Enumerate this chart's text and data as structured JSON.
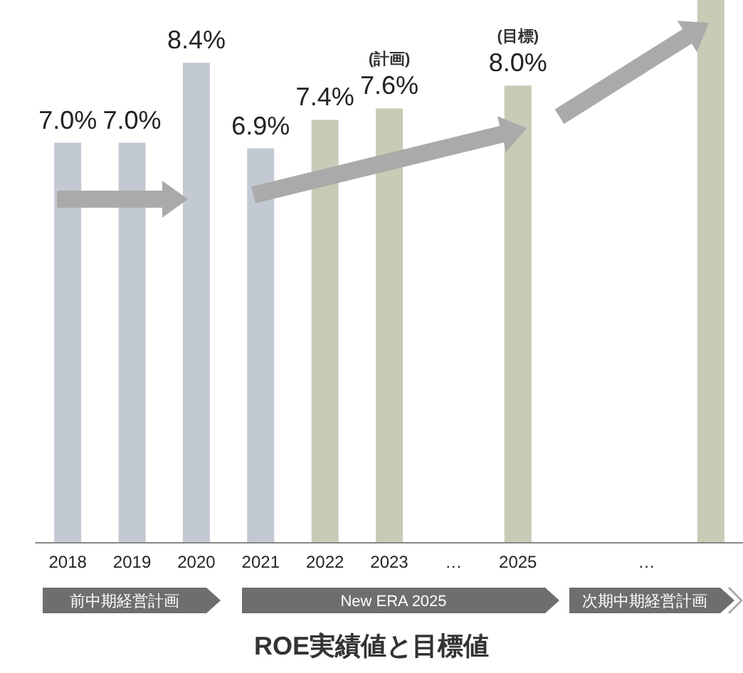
{
  "chart_data": {
    "type": "bar",
    "title": "ROE実績値と目標値",
    "categories": [
      "2018",
      "2019",
      "2020",
      "2021",
      "2022",
      "2023",
      "…",
      "2025",
      null,
      "…",
      null
    ],
    "values": [
      7.0,
      7.0,
      8.4,
      6.9,
      7.4,
      7.6,
      null,
      8.0,
      null,
      null,
      9.5
    ],
    "value_labels": [
      "7.0%",
      "7.0%",
      "8.4%",
      "6.9%",
      "7.4%",
      "7.6%",
      null,
      "8.0%",
      null,
      null,
      null
    ],
    "colors": [
      "#c3c9d3",
      "#c3c9d3",
      "#c3c9d3",
      "#c3c9d3",
      "#c6ccb6",
      "#c6ccb6",
      null,
      "#c6ccb6",
      null,
      null,
      "#c6ccb6"
    ],
    "annotations": [
      {
        "text": "(計画)",
        "x": "2023",
        "y": 7.6
      },
      {
        "text": "(目標)",
        "x": "2025",
        "y": 8.0
      },
      "前中期経営計画",
      "New ERA 2025",
      "次期中期経営計画"
    ]
  }
}
